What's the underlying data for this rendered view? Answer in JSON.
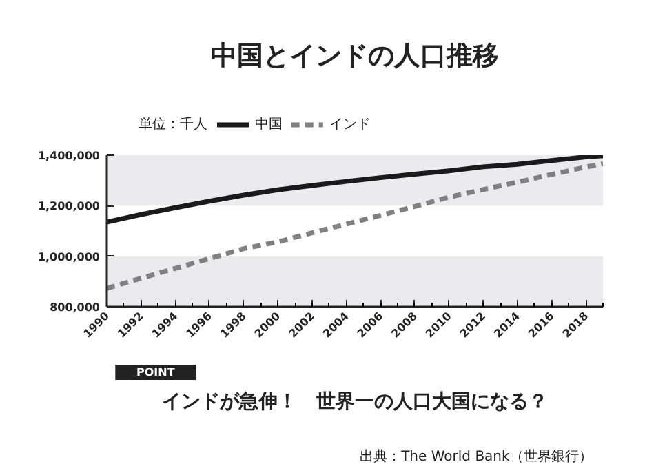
{
  "chart_data": {
    "type": "line",
    "title": "中国とインドの人口推移",
    "ylabel": "単位：千人",
    "x": [
      1990,
      1992,
      1994,
      1996,
      1998,
      2000,
      2002,
      2004,
      2006,
      2008,
      2010,
      2012,
      2014,
      2016,
      2018,
      2019
    ],
    "series": [
      {
        "name": "中国",
        "color": "#1a1a1a",
        "line_style": "solid",
        "values": [
          1135000,
          1165000,
          1192000,
          1218000,
          1242000,
          1263000,
          1280000,
          1296000,
          1311000,
          1325000,
          1338000,
          1354000,
          1364000,
          1379000,
          1393000,
          1398000
        ]
      },
      {
        "name": "インド",
        "color": "#808080",
        "line_style": "dashed",
        "values": [
          873000,
          913000,
          952000,
          991000,
          1030000,
          1057000,
          1093000,
          1127000,
          1162000,
          1197000,
          1234000,
          1264000,
          1293000,
          1324000,
          1353000,
          1366000
        ]
      }
    ],
    "xlim": [
      1990,
      2019
    ],
    "xticks": [
      1990,
      1992,
      1994,
      1996,
      1998,
      2000,
      2002,
      2004,
      2006,
      2008,
      2010,
      2012,
      2014,
      2016,
      2018
    ],
    "ylim": [
      800000,
      1400000
    ],
    "yticks": [
      {
        "value": 800000,
        "label": "800,000"
      },
      {
        "value": 1000000,
        "label": "1,000,000"
      },
      {
        "value": 1200000,
        "label": "1,200,000"
      },
      {
        "value": 1400000,
        "label": "1,400,000"
      }
    ],
    "bands": [
      {
        "axis": "y",
        "from": 1200000,
        "to": 1400000,
        "color": "#ebebed"
      },
      {
        "axis": "y",
        "from": 800000,
        "to": 1000000,
        "color": "#ebebed"
      }
    ],
    "legend": "top left",
    "grid": false,
    "annotations": [
      "POINT",
      "インドが急伸！　世界一の人口大国になる？",
      "出典：The World Bank（世界銀行）"
    ]
  }
}
